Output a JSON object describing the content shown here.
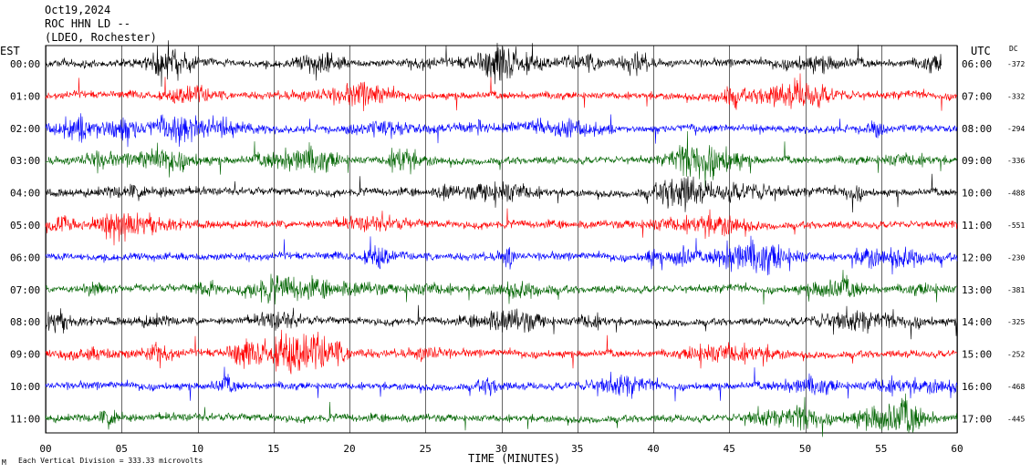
{
  "header": {
    "date": "Oct19,2024",
    "station": "ROC HHN LD --",
    "network": "(LDEO, Rochester)"
  },
  "labels": {
    "left_axis": "EST",
    "right_axis": "UTC",
    "dc_axis": "DC",
    "x_axis": "TIME (MINUTES)",
    "footer_mark": "M",
    "footer": "Each Vertical Division =  333.33 microvolts"
  },
  "colors": {
    "black": "#000000",
    "red": "#ff0000",
    "blue": "#0000ff",
    "green": "#006400",
    "grid": "#000000"
  },
  "chart_data": {
    "type": "line",
    "title": "ROC HHN LD --",
    "xlabel": "TIME (MINUTES)",
    "xlim": [
      0,
      60
    ],
    "x_ticks": [
      "00",
      "05",
      "10",
      "15",
      "20",
      "25",
      "30",
      "35",
      "40",
      "45",
      "50",
      "55",
      "60"
    ],
    "grid": true,
    "rows": [
      {
        "est": "00:00",
        "utc": "06:00",
        "dc": "-372",
        "color": "black",
        "end_minute": 59.0
      },
      {
        "est": "01:00",
        "utc": "07:00",
        "dc": "-332",
        "color": "red"
      },
      {
        "est": "02:00",
        "utc": "08:00",
        "dc": "-294",
        "color": "blue"
      },
      {
        "est": "03:00",
        "utc": "09:00",
        "dc": "-336",
        "color": "green"
      },
      {
        "est": "04:00",
        "utc": "10:00",
        "dc": "-488",
        "color": "black"
      },
      {
        "est": "05:00",
        "utc": "11:00",
        "dc": "-551",
        "color": "red"
      },
      {
        "est": "06:00",
        "utc": "12:00",
        "dc": "-230",
        "color": "blue"
      },
      {
        "est": "07:00",
        "utc": "13:00",
        "dc": "-381",
        "color": "green"
      },
      {
        "est": "08:00",
        "utc": "14:00",
        "dc": "-325",
        "color": "black"
      },
      {
        "est": "09:00",
        "utc": "15:00",
        "dc": "-252",
        "color": "red"
      },
      {
        "est": "10:00",
        "utc": "16:00",
        "dc": "-468",
        "color": "blue"
      },
      {
        "est": "11:00",
        "utc": "17:00",
        "dc": "-445",
        "color": "green"
      }
    ]
  }
}
